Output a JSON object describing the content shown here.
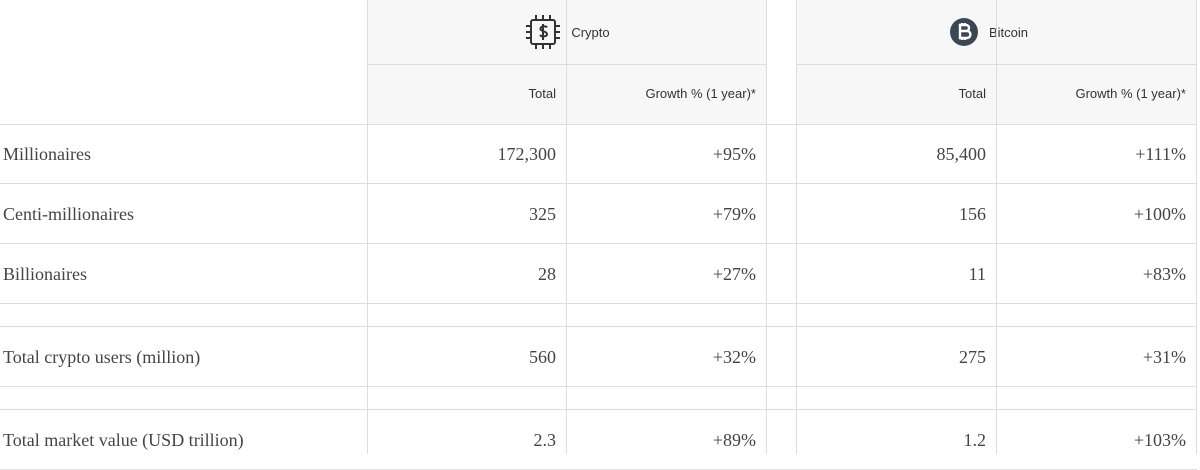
{
  "header": {
    "groups": [
      {
        "label": "Crypto",
        "columns": [
          "Total",
          "Growth % (1 year)*"
        ]
      },
      {
        "label": "Bitcoin",
        "columns": [
          "Total",
          "Growth % (1 year)*"
        ]
      }
    ]
  },
  "table": {
    "rows": [
      [
        "Millionaires",
        "172,300",
        "+95%",
        "85,400",
        "+111%"
      ],
      [
        "Centi-millionaires",
        "325",
        "+79%",
        "156",
        "+100%"
      ],
      [
        "Billionaires",
        "28",
        "+27%",
        "11",
        "+83%"
      ],
      [
        "Total crypto users (million)",
        "560",
        "+32%",
        "275",
        "+31%"
      ],
      [
        "Total market value (USD trillion)",
        "2.3",
        "+89%",
        "1.2",
        "+103%"
      ]
    ]
  }
}
